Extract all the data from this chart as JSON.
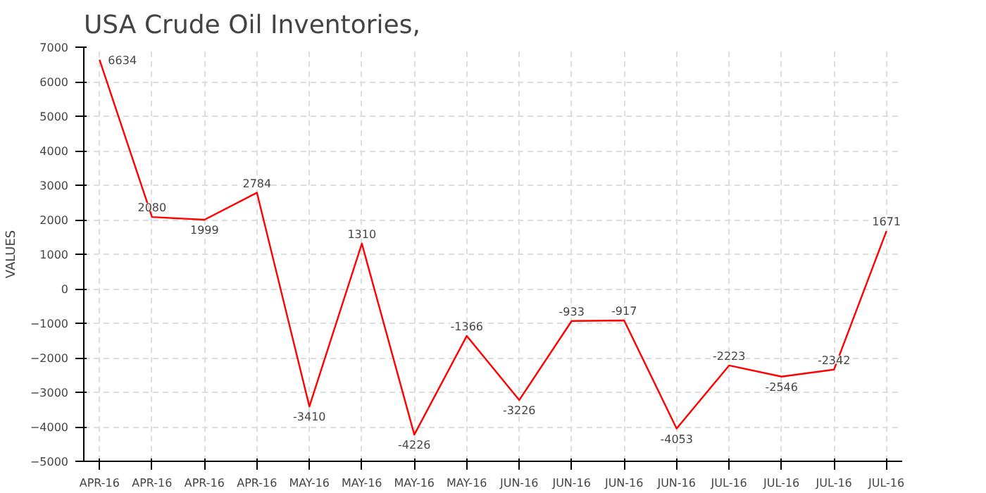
{
  "chart_data": {
    "type": "line",
    "title": "USA Crude Oil Inventories,",
    "ylabel": "VALUES",
    "categories": [
      "APR-16",
      "APR-16",
      "APR-16",
      "APR-16",
      "MAY-16",
      "MAY-16",
      "MAY-16",
      "MAY-16",
      "JUN-16",
      "JUN-16",
      "JUN-16",
      "JUN-16",
      "JUL-16",
      "JUL-16",
      "JUL-16",
      "JUL-16"
    ],
    "series": [
      {
        "color": "#ff0000",
        "values": [
          6634,
          2080,
          1999,
          2784,
          -3410,
          1310,
          -4226,
          -1366,
          -3226,
          -933,
          -917,
          -4053,
          -2223,
          -2546,
          -2342,
          1671
        ]
      }
    ],
    "ylim": [
      -5000,
      7000
    ],
    "yticks": [
      -5000,
      -4000,
      -3000,
      -2000,
      -1000,
      0,
      1000,
      2000,
      3000,
      4000,
      5000,
      6000,
      7000
    ],
    "grid": true,
    "data_labels": true,
    "marker": "none",
    "line_style": "solid"
  }
}
